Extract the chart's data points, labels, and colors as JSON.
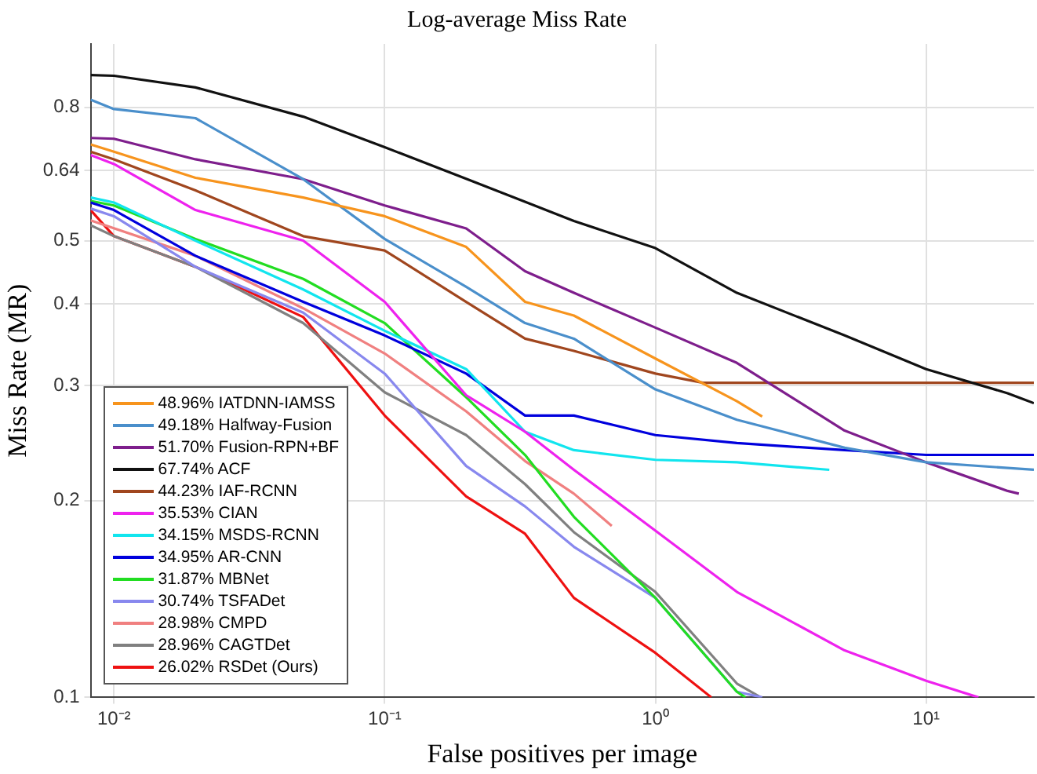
{
  "chart_data": {
    "type": "line",
    "title": "Log-average Miss Rate",
    "xlabel": "False positives per image",
    "ylabel": "Miss Rate (MR)",
    "log": "xy",
    "grid": true,
    "legend": "bottom left",
    "marker": "none",
    "line_style": "solid",
    "xlim": [
      0.0082,
      25
    ],
    "ylim": [
      0.1,
      1
    ],
    "xticks": [
      {
        "value": 0.01,
        "label": "10⁻²"
      },
      {
        "value": 0.1,
        "label": "10⁻¹"
      },
      {
        "value": 1,
        "label": "10⁰"
      },
      {
        "value": 10,
        "label": "10¹"
      }
    ],
    "yticks": [
      0.1,
      0.2,
      0.3,
      0.4,
      0.5,
      0.64,
      0.8
    ],
    "series": [
      {
        "name": "48.96% IATDNN-IAMSS",
        "color": "#f7941d",
        "x": [
          0.0082,
          0.01,
          0.02,
          0.05,
          0.1,
          0.2,
          0.33,
          0.5,
          1,
          2,
          2.48
        ],
        "values": [
          0.702,
          0.684,
          0.624,
          0.582,
          0.545,
          0.489,
          0.403,
          0.384,
          0.33,
          0.284,
          0.269
        ]
      },
      {
        "name": "49.18% Halfway-Fusion",
        "color": "#4a8fcb",
        "x": [
          0.0082,
          0.01,
          0.02,
          0.05,
          0.1,
          0.2,
          0.33,
          0.5,
          1,
          2,
          5,
          10,
          25
        ],
        "values": [
          0.822,
          0.795,
          0.77,
          0.621,
          0.503,
          0.425,
          0.374,
          0.354,
          0.296,
          0.266,
          0.241,
          0.229,
          0.223
        ]
      },
      {
        "name": "51.70% Fusion-RPN+BF",
        "color": "#7e1e8c",
        "x": [
          0.0082,
          0.01,
          0.02,
          0.05,
          0.1,
          0.2,
          0.33,
          0.5,
          1,
          2,
          5,
          10,
          20,
          22
        ],
        "values": [
          0.718,
          0.716,
          0.666,
          0.621,
          0.566,
          0.522,
          0.449,
          0.416,
          0.368,
          0.325,
          0.256,
          0.229,
          0.207,
          0.205
        ]
      },
      {
        "name": "67.74% ACF",
        "color": "#111111",
        "x": [
          0.0082,
          0.01,
          0.02,
          0.05,
          0.1,
          0.2,
          0.5,
          1,
          2,
          5,
          10,
          20,
          25
        ],
        "values": [
          0.896,
          0.894,
          0.858,
          0.774,
          0.695,
          0.622,
          0.536,
          0.487,
          0.416,
          0.358,
          0.318,
          0.292,
          0.282
        ]
      },
      {
        "name": "44.23% IAF-RCNN",
        "color": "#a0461e",
        "x": [
          0.0082,
          0.01,
          0.02,
          0.05,
          0.1,
          0.2,
          0.33,
          0.5,
          1,
          1.5,
          25
        ],
        "values": [
          0.684,
          0.666,
          0.597,
          0.508,
          0.483,
          0.403,
          0.354,
          0.339,
          0.313,
          0.303,
          0.303
        ]
      },
      {
        "name": "35.53% CIAN",
        "color": "#ee22ee",
        "x": [
          0.0082,
          0.01,
          0.02,
          0.05,
          0.1,
          0.2,
          0.33,
          0.5,
          1,
          2,
          5,
          10,
          15.6
        ],
        "values": [
          0.676,
          0.655,
          0.557,
          0.5,
          0.403,
          0.29,
          0.255,
          0.223,
          0.18,
          0.145,
          0.118,
          0.106,
          0.1
        ]
      },
      {
        "name": "34.15% MSDS-RCNN",
        "color": "#11e5ee",
        "x": [
          0.0082,
          0.01,
          0.02,
          0.05,
          0.1,
          0.2,
          0.33,
          0.5,
          1,
          2,
          4.39
        ],
        "values": [
          0.582,
          0.572,
          0.5,
          0.421,
          0.364,
          0.318,
          0.255,
          0.239,
          0.231,
          0.229,
          0.223
        ]
      },
      {
        "name": "34.95% AR-CNN",
        "color": "#0000dd",
        "x": [
          0.0082,
          0.01,
          0.02,
          0.05,
          0.1,
          0.2,
          0.33,
          0.5,
          1,
          2,
          5,
          10,
          25
        ],
        "values": [
          0.572,
          0.557,
          0.474,
          0.403,
          0.358,
          0.313,
          0.27,
          0.27,
          0.252,
          0.245,
          0.239,
          0.235,
          0.235
        ]
      },
      {
        "name": "31.87% MBNet",
        "color": "#22dd22",
        "x": [
          0.0082,
          0.01,
          0.02,
          0.05,
          0.1,
          0.2,
          0.33,
          0.5,
          1,
          2,
          2.15
        ],
        "values": [
          0.575,
          0.566,
          0.503,
          0.437,
          0.374,
          0.288,
          0.235,
          0.189,
          0.142,
          0.102,
          0.1
        ]
      },
      {
        "name": "30.74% TSFADet",
        "color": "#8888ee",
        "x": [
          0.0082,
          0.01,
          0.02,
          0.05,
          0.1,
          0.2,
          0.33,
          0.5,
          1,
          2,
          2.48
        ],
        "values": [
          0.56,
          0.545,
          0.456,
          0.388,
          0.313,
          0.226,
          0.196,
          0.17,
          0.142,
          0.102,
          0.1
        ]
      },
      {
        "name": "28.98% CMPD",
        "color": "#f08080",
        "x": [
          0.0082,
          0.02,
          0.05,
          0.1,
          0.2,
          0.33,
          0.5,
          0.69
        ],
        "values": [
          0.537,
          0.474,
          0.394,
          0.336,
          0.274,
          0.23,
          0.205,
          0.183
        ]
      },
      {
        "name": "28.96% CAGTDet",
        "color": "#808080",
        "x": [
          0.0082,
          0.01,
          0.02,
          0.05,
          0.1,
          0.2,
          0.33,
          0.5,
          1,
          2,
          2.45
        ],
        "values": [
          0.528,
          0.508,
          0.456,
          0.374,
          0.293,
          0.252,
          0.212,
          0.179,
          0.145,
          0.105,
          0.1
        ]
      },
      {
        "name": "26.02% RSDet (Ours)",
        "color": "#ee1111",
        "x": [
          0.0082,
          0.01,
          0.02,
          0.05,
          0.1,
          0.2,
          0.33,
          0.5,
          1,
          1.61
        ],
        "values": [
          0.557,
          0.508,
          0.456,
          0.382,
          0.27,
          0.203,
          0.178,
          0.142,
          0.117,
          0.1
        ]
      }
    ]
  }
}
